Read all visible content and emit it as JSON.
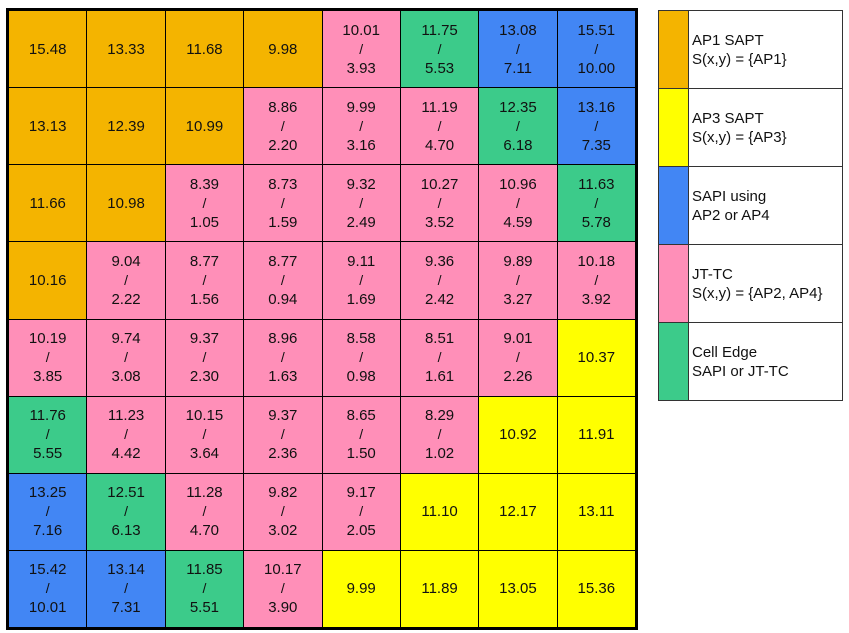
{
  "colors": {
    "ap1": "#f4b400",
    "ap3": "#ffff00",
    "sapi": "#4286f4",
    "jt": "#ff8fb8",
    "edge": "#3ccb8a"
  },
  "legend": [
    {
      "key": "ap1",
      "line1": "AP1 SAPT",
      "line2": "S(x,y) = {AP1}"
    },
    {
      "key": "ap3",
      "line1": "AP3 SAPT",
      "line2": "S(x,y) = {AP3}"
    },
    {
      "key": "sapi",
      "line1": "SAPI using",
      "line2": "AP2 or AP4"
    },
    {
      "key": "jt",
      "line1": "JT-TC",
      "line2": "S(x,y) = {AP2, AP4}"
    },
    {
      "key": "edge",
      "line1": "Cell Edge",
      "line2": "SAPI or JT-TC"
    }
  ],
  "grid": [
    [
      {
        "type": "ap1",
        "v1": "15.48"
      },
      {
        "type": "ap1",
        "v1": "13.33"
      },
      {
        "type": "ap1",
        "v1": "11.68"
      },
      {
        "type": "ap1",
        "v1": "9.98"
      },
      {
        "type": "jt",
        "v1": "10.01",
        "v2": "3.93"
      },
      {
        "type": "edge",
        "v1": "11.75",
        "v2": "5.53"
      },
      {
        "type": "sapi",
        "v1": "13.08",
        "v2": "7.11"
      },
      {
        "type": "sapi",
        "v1": "15.51",
        "v2": "10.00"
      }
    ],
    [
      {
        "type": "ap1",
        "v1": "13.13"
      },
      {
        "type": "ap1",
        "v1": "12.39"
      },
      {
        "type": "ap1",
        "v1": "10.99"
      },
      {
        "type": "jt",
        "v1": "8.86",
        "v2": "2.20"
      },
      {
        "type": "jt",
        "v1": "9.99",
        "v2": "3.16"
      },
      {
        "type": "jt",
        "v1": "11.19",
        "v2": "4.70"
      },
      {
        "type": "edge",
        "v1": "12.35",
        "v2": "6.18"
      },
      {
        "type": "sapi",
        "v1": "13.16",
        "v2": "7.35"
      }
    ],
    [
      {
        "type": "ap1",
        "v1": "11.66"
      },
      {
        "type": "ap1",
        "v1": "10.98"
      },
      {
        "type": "jt",
        "v1": "8.39",
        "v2": "1.05"
      },
      {
        "type": "jt",
        "v1": "8.73",
        "v2": "1.59"
      },
      {
        "type": "jt",
        "v1": "9.32",
        "v2": "2.49"
      },
      {
        "type": "jt",
        "v1": "10.27",
        "v2": "3.52"
      },
      {
        "type": "jt",
        "v1": "10.96",
        "v2": "4.59"
      },
      {
        "type": "edge",
        "v1": "11.63",
        "v2": "5.78"
      }
    ],
    [
      {
        "type": "ap1",
        "v1": "10.16"
      },
      {
        "type": "jt",
        "v1": "9.04",
        "v2": "2.22"
      },
      {
        "type": "jt",
        "v1": "8.77",
        "v2": "1.56"
      },
      {
        "type": "jt",
        "v1": "8.77",
        "v2": "0.94"
      },
      {
        "type": "jt",
        "v1": "9.11",
        "v2": "1.69"
      },
      {
        "type": "jt",
        "v1": "9.36",
        "v2": "2.42"
      },
      {
        "type": "jt",
        "v1": "9.89",
        "v2": "3.27"
      },
      {
        "type": "jt",
        "v1": "10.18",
        "v2": "3.92"
      }
    ],
    [
      {
        "type": "jt",
        "v1": "10.19",
        "v2": "3.85"
      },
      {
        "type": "jt",
        "v1": "9.74",
        "v2": "3.08"
      },
      {
        "type": "jt",
        "v1": "9.37",
        "v2": "2.30"
      },
      {
        "type": "jt",
        "v1": "8.96",
        "v2": "1.63"
      },
      {
        "type": "jt",
        "v1": "8.58",
        "v2": "0.98"
      },
      {
        "type": "jt",
        "v1": "8.51",
        "v2": "1.61"
      },
      {
        "type": "jt",
        "v1": "9.01",
        "v2": "2.26"
      },
      {
        "type": "ap3",
        "v1": "10.37"
      }
    ],
    [
      {
        "type": "edge",
        "v1": "11.76",
        "v2": "5.55"
      },
      {
        "type": "jt",
        "v1": "11.23",
        "v2": "4.42"
      },
      {
        "type": "jt",
        "v1": "10.15",
        "v2": "3.64"
      },
      {
        "type": "jt",
        "v1": "9.37",
        "v2": "2.36"
      },
      {
        "type": "jt",
        "v1": "8.65",
        "v2": "1.50"
      },
      {
        "type": "jt",
        "v1": "8.29",
        "v2": "1.02"
      },
      {
        "type": "ap3",
        "v1": "10.92"
      },
      {
        "type": "ap3",
        "v1": "11.91"
      }
    ],
    [
      {
        "type": "sapi",
        "v1": "13.25",
        "v2": "7.16"
      },
      {
        "type": "edge",
        "v1": "12.51",
        "v2": "6.13"
      },
      {
        "type": "jt",
        "v1": "11.28",
        "v2": "4.70"
      },
      {
        "type": "jt",
        "v1": "9.82",
        "v2": "3.02"
      },
      {
        "type": "jt",
        "v1": "9.17",
        "v2": "2.05"
      },
      {
        "type": "ap3",
        "v1": "11.10"
      },
      {
        "type": "ap3",
        "v1": "12.17"
      },
      {
        "type": "ap3",
        "v1": "13.11"
      }
    ],
    [
      {
        "type": "sapi",
        "v1": "15.42",
        "v2": "10.01"
      },
      {
        "type": "sapi",
        "v1": "13.14",
        "v2": "7.31"
      },
      {
        "type": "edge",
        "v1": "11.85",
        "v2": "5.51"
      },
      {
        "type": "jt",
        "v1": "10.17",
        "v2": "3.90"
      },
      {
        "type": "ap3",
        "v1": "9.99"
      },
      {
        "type": "ap3",
        "v1": "11.89"
      },
      {
        "type": "ap3",
        "v1": "13.05"
      },
      {
        "type": "ap3",
        "v1": "15.36"
      }
    ]
  ],
  "separator": "/"
}
